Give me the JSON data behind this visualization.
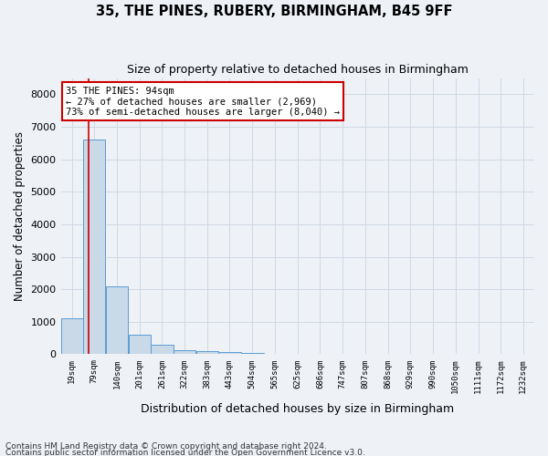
{
  "title": "35, THE PINES, RUBERY, BIRMINGHAM, B45 9FF",
  "subtitle": "Size of property relative to detached houses in Birmingham",
  "xlabel": "Distribution of detached houses by size in Birmingham",
  "ylabel": "Number of detached properties",
  "footnote1": "Contains HM Land Registry data © Crown copyright and database right 2024.",
  "footnote2": "Contains public sector information licensed under the Open Government Licence v3.0.",
  "bin_labels": [
    "19sqm",
    "79sqm",
    "140sqm",
    "201sqm",
    "261sqm",
    "322sqm",
    "383sqm",
    "443sqm",
    "504sqm",
    "565sqm",
    "625sqm",
    "686sqm",
    "747sqm",
    "807sqm",
    "868sqm",
    "929sqm",
    "990sqm",
    "1050sqm",
    "1111sqm",
    "1172sqm",
    "1232sqm"
  ],
  "bin_edges": [
    19,
    79,
    140,
    201,
    261,
    322,
    383,
    443,
    504,
    565,
    625,
    686,
    747,
    807,
    868,
    929,
    990,
    1050,
    1111,
    1172,
    1232
  ],
  "bar_values": [
    1100,
    6600,
    2100,
    600,
    300,
    130,
    90,
    60,
    50,
    0,
    0,
    0,
    0,
    0,
    0,
    0,
    0,
    0,
    0,
    0,
    0
  ],
  "bar_color": "#c9d9e8",
  "bar_edge_color": "#5b9bd5",
  "property_sqm": 94,
  "red_line_color": "#cc0000",
  "annotation_text": "35 THE PINES: 94sqm\n← 27% of detached houses are smaller (2,969)\n73% of semi-detached houses are larger (8,040) →",
  "annotation_box_color": "#ffffff",
  "annotation_border_color": "#cc0000",
  "ylim": [
    0,
    8500
  ],
  "yticks": [
    0,
    1000,
    2000,
    3000,
    4000,
    5000,
    6000,
    7000,
    8000
  ],
  "grid_color": "#d0d8e4",
  "background_color": "#eef2f7"
}
